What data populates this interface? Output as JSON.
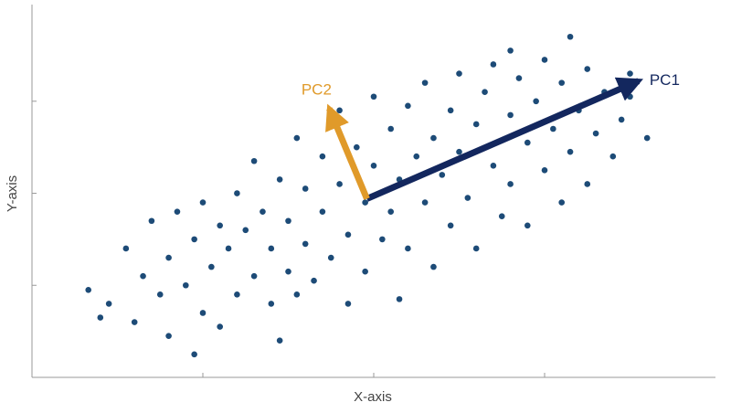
{
  "chart_data": {
    "type": "scatter",
    "x_label": "X-axis",
    "y_label": "Y-axis",
    "x": [
      -1.67,
      -1.55,
      -1.6,
      -1.45,
      -1.4,
      -1.35,
      -1.3,
      -1.25,
      -1.2,
      -1.2,
      -1.15,
      -1.1,
      -1.05,
      -1.0,
      -1.0,
      -0.95,
      -0.9,
      -0.9,
      -0.85,
      -0.8,
      -0.8,
      -0.75,
      -0.7,
      -0.7,
      -0.65,
      -0.6,
      -0.6,
      -0.55,
      -0.5,
      -0.5,
      -0.45,
      -0.45,
      -0.4,
      -0.4,
      -0.35,
      -0.3,
      -0.3,
      -0.25,
      -0.2,
      -0.2,
      -0.15,
      -0.15,
      -0.1,
      -0.05,
      -0.05,
      0.0,
      0.0,
      0.05,
      0.1,
      0.1,
      0.15,
      0.15,
      0.2,
      0.2,
      0.25,
      0.3,
      0.3,
      0.35,
      0.35,
      0.4,
      0.45,
      0.45,
      0.5,
      0.5,
      0.55,
      0.6,
      0.6,
      0.65,
      0.7,
      0.7,
      0.75,
      0.8,
      0.8,
      0.85,
      0.9,
      0.9,
      0.95,
      1.0,
      1.0,
      1.05,
      1.1,
      1.1,
      1.15,
      1.2,
      1.25,
      1.25,
      1.3,
      1.35,
      1.4,
      1.45,
      1.5,
      1.5,
      1.6,
      -1.05,
      -0.55,
      0.8,
      1.15
    ],
    "y": [
      -1.05,
      -1.2,
      -1.35,
      -0.6,
      -1.4,
      -0.9,
      -0.3,
      -1.1,
      -0.7,
      -1.55,
      -0.2,
      -1.0,
      -0.5,
      -1.3,
      -0.1,
      -0.8,
      -0.35,
      -1.45,
      -0.6,
      0.0,
      -1.1,
      -0.4,
      -0.9,
      0.35,
      -0.2,
      -1.2,
      -0.6,
      0.15,
      -0.85,
      -0.3,
      0.6,
      -1.1,
      0.05,
      -0.55,
      -0.95,
      0.4,
      -0.2,
      -0.7,
      0.9,
      0.1,
      -1.2,
      -0.45,
      0.5,
      -0.1,
      -0.85,
      0.3,
      1.05,
      -0.5,
      0.7,
      -0.2,
      -1.15,
      0.15,
      0.95,
      -0.6,
      0.4,
      -0.1,
      1.2,
      0.6,
      -0.8,
      0.2,
      0.9,
      -0.35,
      1.3,
      0.45,
      -0.05,
      0.75,
      -0.6,
      1.1,
      0.3,
      1.4,
      -0.25,
      0.85,
      0.1,
      1.25,
      0.55,
      -0.35,
      1.0,
      0.25,
      1.45,
      0.7,
      -0.1,
      1.2,
      0.45,
      0.9,
      1.35,
      0.1,
      0.65,
      1.1,
      0.4,
      0.8,
      1.3,
      1.05,
      0.6,
      -1.75,
      -1.6,
      1.55,
      1.7
    ],
    "color": "#1d4b77",
    "xlim": [
      -2,
      2
    ],
    "ylim": [
      -2,
      2.05
    ],
    "xticks": [
      -1,
      0,
      1
    ],
    "yticks": [
      -1,
      0,
      1
    ],
    "arrows": [
      {
        "name": "PC1",
        "color": "#13275e",
        "start": [
          -0.04,
          -0.06
        ],
        "end": [
          1.55,
          1.22
        ]
      },
      {
        "name": "PC2",
        "color": "#e09a2a",
        "start": [
          -0.04,
          -0.06
        ],
        "end": [
          -0.26,
          0.92
        ]
      }
    ]
  }
}
